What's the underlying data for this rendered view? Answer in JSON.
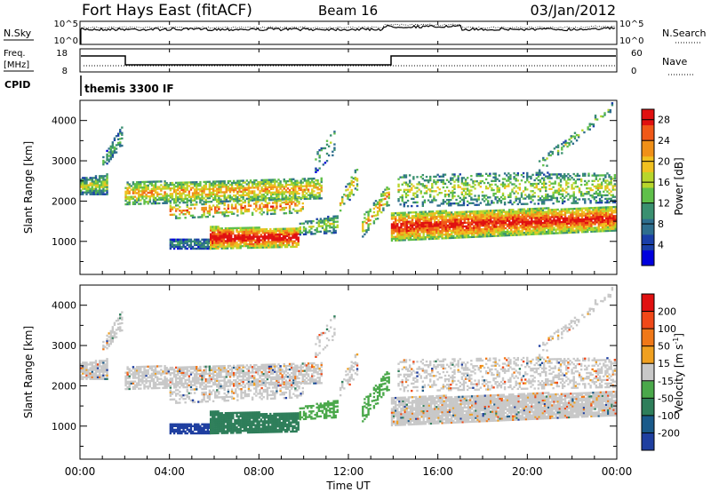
{
  "header": {
    "title": "Fort Hays East (fitACF)",
    "beam": "Beam 16",
    "date": "03/Jan/2012"
  },
  "status_panels": {
    "nsky_label": "N.Sky",
    "nsearch_label": "N.Search",
    "noise_ticks": [
      "10^5",
      "10^0"
    ],
    "freq_label_1": "Freq.",
    "freq_label_2": "[MHz]",
    "freq_ticks": [
      "18",
      "8"
    ],
    "nave_label": "Nave",
    "nave_ticks": [
      "60",
      "0"
    ],
    "cpid_label": "CPID",
    "cpid_value": "themis 3300 IF"
  },
  "chart_data": [
    {
      "type": "heatmap",
      "panel": "power",
      "xlabel": "Time UT",
      "ylabel": "Slant Range [km]",
      "x_ticks": [
        "00:00",
        "04:00",
        "08:00",
        "12:00",
        "16:00",
        "20:00",
        "00:00"
      ],
      "xlim_hours": [
        0,
        24
      ],
      "y_ticks": [
        1000,
        2000,
        3000,
        4000
      ],
      "ylim_km": [
        180,
        4500
      ],
      "colorbar": {
        "label": "Power [dB]",
        "ticks": [
          4,
          8,
          12,
          16,
          20,
          24,
          28
        ],
        "range": [
          0,
          30
        ],
        "colors": [
          "#0000dd",
          "#1a3fa8",
          "#2e6e8e",
          "#3a9070",
          "#5fbf4a",
          "#b8d62c",
          "#f0c020",
          "#f09018",
          "#f05818",
          "#e01010"
        ]
      }
    },
    {
      "type": "heatmap",
      "panel": "velocity",
      "xlabel": "Time UT",
      "ylabel": "Slant Range [km]",
      "x_ticks": [
        "00:00",
        "04:00",
        "08:00",
        "12:00",
        "16:00",
        "20:00",
        "00:00"
      ],
      "xlim_hours": [
        0,
        24
      ],
      "y_ticks": [
        1000,
        2000,
        3000,
        4000
      ],
      "ylim_km": [
        180,
        4500
      ],
      "colorbar": {
        "label": "Velocity [m s",
        "label_sup": "-1",
        "label_end": "]",
        "ticks": [
          200,
          100,
          50,
          15,
          -15,
          -50,
          -100,
          -200
        ],
        "colors": [
          "#1f3fa0",
          "#1a5a8a",
          "#2e7e5a",
          "#4aa84a",
          "#c8c8c8",
          "#f0a020",
          "#f07818",
          "#f04818",
          "#e01010"
        ]
      }
    }
  ]
}
